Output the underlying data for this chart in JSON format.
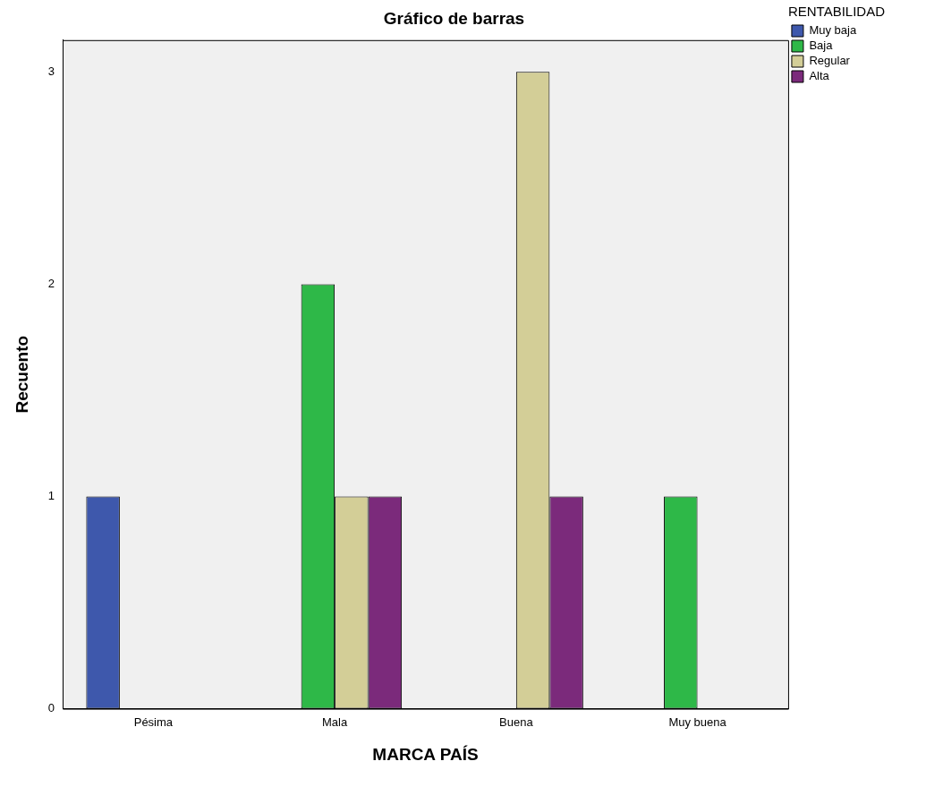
{
  "chart_data": {
    "type": "bar",
    "title": "Gráfico de barras",
    "xlabel": "MARCA PAÍS",
    "ylabel": "Recuento",
    "legend_title": "RENTABILIDAD",
    "categories": [
      "Pésima",
      "Mala",
      "Buena",
      "Muy buena"
    ],
    "series": [
      {
        "name": "Muy baja",
        "color": "#3e58ac",
        "values": [
          1,
          0,
          0,
          0
        ]
      },
      {
        "name": "Baja",
        "color": "#2eb848",
        "values": [
          0,
          2,
          0,
          1
        ]
      },
      {
        "name": "Regular",
        "color": "#d3ce97",
        "values": [
          0,
          1,
          3,
          0
        ]
      },
      {
        "name": "Alta",
        "color": "#7b2a7b",
        "values": [
          0,
          1,
          1,
          0
        ]
      }
    ],
    "ylim": [
      0,
      3.15
    ],
    "yticks": [
      0,
      1,
      2,
      3
    ],
    "grid": false,
    "legend": "top right"
  }
}
